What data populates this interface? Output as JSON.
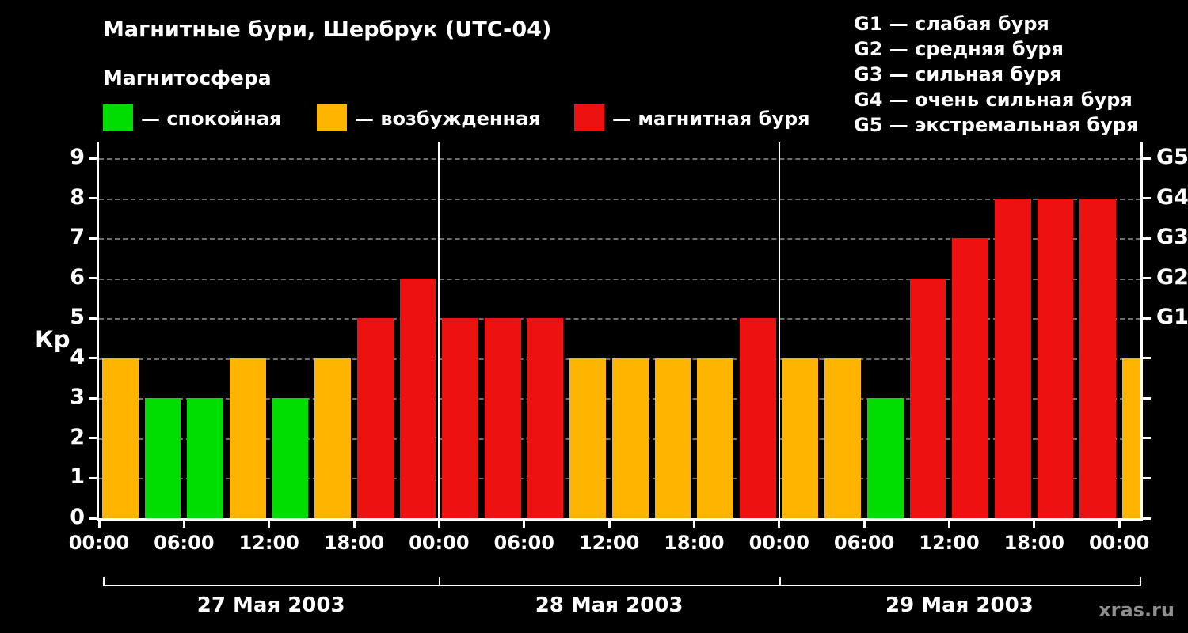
{
  "legend": {
    "heading": "Магнитосфера",
    "items": [
      {
        "key": "quiet",
        "label": "— спокойная",
        "color": "#00dd00"
      },
      {
        "key": "disturbed",
        "label": "— возбужденная",
        "color": "#ffb400"
      },
      {
        "key": "storm",
        "label": "— магнитная буря",
        "color": "#ee1111"
      }
    ]
  },
  "storm_scale": [
    "G1 — слабая буря",
    "G2 — средняя буря",
    "G3 — сильная буря",
    "G4 — очень сильная буря",
    "G5 — экстремальная буря"
  ],
  "watermark": "xras.ru",
  "chart_data": {
    "type": "bar",
    "title": "Магнитные бури, Шербрук (UTC-04)",
    "ylabel": "Кр",
    "ylim": [
      0,
      9
    ],
    "interval_hours": 3,
    "grid": "dashed horizontal gridlines at each integer",
    "y_tick_labels": [
      "0",
      "1",
      "2",
      "3",
      "4",
      "5",
      "6",
      "7",
      "8",
      "9"
    ],
    "x_tick_labels": [
      "00:00",
      "06:00",
      "12:00",
      "18:00",
      "00:00",
      "06:00",
      "12:00",
      "18:00",
      "00:00",
      "06:00",
      "12:00",
      "18:00",
      "00:00"
    ],
    "right_axis": [
      {
        "value": 5,
        "label": "G1"
      },
      {
        "value": 6,
        "label": "G2"
      },
      {
        "value": 7,
        "label": "G3"
      },
      {
        "value": 8,
        "label": "G4"
      },
      {
        "value": 9,
        "label": "G5"
      }
    ],
    "days": [
      {
        "date": "27 Мая 2003",
        "values": [
          4,
          3,
          3,
          4,
          3,
          4,
          5,
          6
        ]
      },
      {
        "date": "28 Мая 2003",
        "values": [
          5,
          5,
          5,
          4,
          4,
          4,
          4,
          5
        ]
      },
      {
        "date": "29 Мая 2003",
        "values": [
          4,
          4,
          3,
          6,
          7,
          8,
          8,
          8
        ]
      }
    ],
    "partial_next_value": 4,
    "colors": {
      "quiet": "#00dd00",
      "disturbed": "#ffb400",
      "storm": "#ee1111"
    },
    "thresholds": {
      "disturbed_min": 4,
      "storm_min": 5
    }
  }
}
